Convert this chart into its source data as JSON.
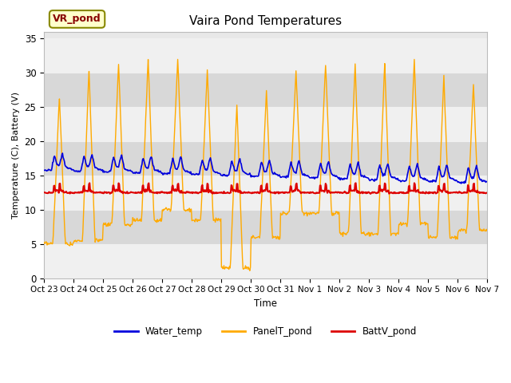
{
  "title": "Vaira Pond Temperatures",
  "ylabel": "Temperature (C), Battery (V)",
  "xlabel": "Time",
  "ylim": [
    0,
    36
  ],
  "yticks": [
    0,
    5,
    10,
    15,
    20,
    25,
    30,
    35
  ],
  "xtick_labels": [
    "Oct 23",
    "Oct 24",
    "Oct 25",
    "Oct 26",
    "Oct 27",
    "Oct 28",
    "Oct 29",
    "Oct 30",
    "Oct 31",
    "Nov 1",
    "Nov 2",
    "Nov 3",
    "Nov 4",
    "Nov 5",
    "Nov 6",
    "Nov 7"
  ],
  "water_color": "#0000dd",
  "panel_color": "#ffaa00",
  "batt_color": "#dd0000",
  "annotation_text": "VR_pond",
  "annotation_color": "#880000",
  "annotation_bg": "#ffffcc",
  "legend_labels": [
    "Water_temp",
    "PanelT_pond",
    "BattV_pond"
  ],
  "plot_bg": "#e8e8e8",
  "band_light": "#f0f0f0",
  "band_dark": "#d8d8d8",
  "grid_color": "#f0f0f0"
}
